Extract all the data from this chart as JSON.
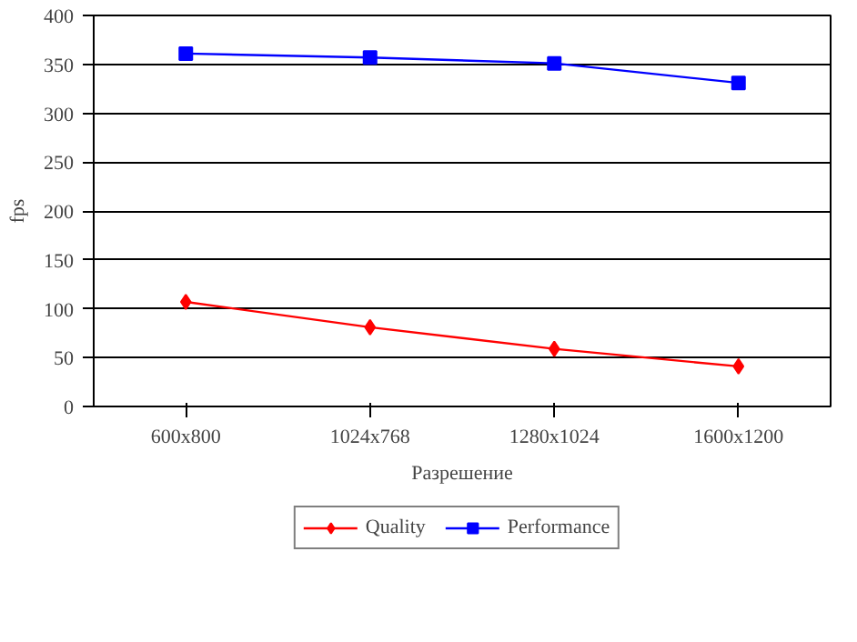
{
  "chart_data": {
    "type": "line",
    "xlabel": "Разрешение",
    "ylabel": "fps",
    "categories": [
      "600x800",
      "1024x768",
      "1280x1024",
      "1600x1200"
    ],
    "series": [
      {
        "name": "Quality",
        "color": "#ff0000",
        "values": [
          107,
          81,
          59,
          41
        ],
        "marker": "diamond"
      },
      {
        "name": "Performance",
        "color": "#0000ff",
        "values": [
          361,
          357,
          351,
          331
        ],
        "marker": "square"
      }
    ],
    "ylim": [
      0,
      400
    ],
    "yticks": [
      0,
      50,
      100,
      150,
      200,
      250,
      300,
      350,
      400
    ],
    "grid": "y",
    "legend": "bottom",
    "line_style": "solid"
  }
}
